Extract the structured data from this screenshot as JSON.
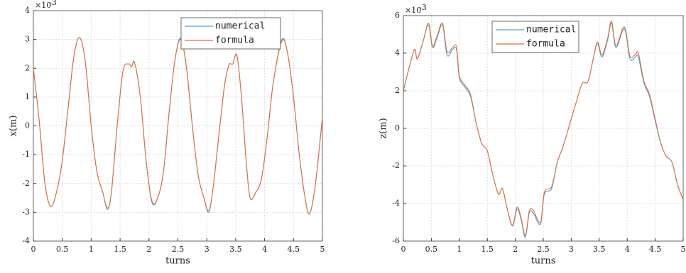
{
  "chart_data": [
    {
      "type": "line",
      "xlabel": "turns",
      "ylabel": "x(m)",
      "y_multiplier": "×10",
      "y_exponent": "-3",
      "xlim": [
        0,
        5
      ],
      "xticks": [
        0,
        0.5,
        1,
        1.5,
        2,
        2.5,
        3,
        3.5,
        4,
        4.5,
        5
      ],
      "ylim": [
        -4,
        4
      ],
      "yticks": [
        -4,
        -3,
        -2,
        -1,
        0,
        1,
        2,
        3,
        4
      ],
      "grid": true,
      "legend": "top",
      "x": [
        0,
        0.1,
        0.2,
        0.3,
        0.4,
        0.5,
        0.6,
        0.7,
        0.8,
        0.9,
        1.0,
        1.1,
        1.2,
        1.28,
        1.35,
        1.45,
        1.55,
        1.65,
        1.7,
        1.75,
        1.85,
        1.95,
        2.05,
        2.15,
        2.25,
        2.35,
        2.45,
        2.55,
        2.65,
        2.75,
        2.85,
        2.95,
        3.03,
        3.1,
        3.2,
        3.3,
        3.38,
        3.45,
        3.52,
        3.6,
        3.68,
        3.75,
        3.85,
        3.95,
        4.05,
        4.15,
        4.3,
        4.4,
        4.5,
        4.6,
        4.7,
        4.78,
        4.88,
        5.0
      ],
      "series": [
        {
          "name": "numerical",
          "color": "#4a9fd4",
          "values": [
            2.0,
            0.2,
            -2.0,
            -2.8,
            -2.3,
            -1.2,
            0.6,
            2.4,
            3.07,
            2.2,
            0.0,
            -1.6,
            -2.3,
            -2.9,
            -2.3,
            0.0,
            1.9,
            2.15,
            2.05,
            2.2,
            1.0,
            -1.2,
            -2.65,
            -2.5,
            -1.6,
            0.5,
            2.3,
            3.05,
            2.0,
            0.0,
            -1.7,
            -2.5,
            -3.0,
            -2.3,
            -0.5,
            1.3,
            2.1,
            2.15,
            2.45,
            1.0,
            -1.2,
            -2.5,
            -2.3,
            -1.8,
            -0.3,
            1.5,
            3.0,
            2.5,
            1.0,
            -1.0,
            -2.5,
            -3.05,
            -2.0,
            0.3
          ]
        },
        {
          "name": "formula",
          "color": "#e0703c",
          "values": [
            2.0,
            0.2,
            -2.0,
            -2.8,
            -2.3,
            -1.2,
            0.6,
            2.4,
            3.07,
            2.2,
            0.0,
            -1.6,
            -2.3,
            -2.85,
            -2.3,
            0.0,
            1.9,
            2.15,
            2.05,
            2.2,
            1.0,
            -1.2,
            -2.6,
            -2.5,
            -1.6,
            0.5,
            2.3,
            3.0,
            2.0,
            0.0,
            -1.7,
            -2.5,
            -2.95,
            -2.3,
            -0.5,
            1.3,
            2.1,
            2.15,
            2.45,
            1.0,
            -1.2,
            -2.5,
            -2.3,
            -1.8,
            -0.3,
            1.5,
            2.95,
            2.5,
            1.0,
            -1.0,
            -2.5,
            -3.05,
            -2.0,
            0.3
          ]
        }
      ]
    },
    {
      "type": "line",
      "xlabel": "turns",
      "ylabel": "z(m)",
      "y_multiplier": "×10",
      "y_exponent": "-3",
      "xlim": [
        0,
        5
      ],
      "xticks": [
        0,
        0.5,
        1,
        1.5,
        2,
        2.5,
        3,
        3.5,
        4,
        4.5,
        5
      ],
      "ylim": [
        -6,
        6
      ],
      "yticks": [
        -6,
        -4,
        -2,
        0,
        2,
        4,
        6
      ],
      "grid": true,
      "legend": "top",
      "x": [
        0,
        0.1,
        0.2,
        0.25,
        0.35,
        0.45,
        0.52,
        0.6,
        0.7,
        0.78,
        0.88,
        0.95,
        1.0,
        1.1,
        1.2,
        1.3,
        1.4,
        1.5,
        1.6,
        1.7,
        1.77,
        1.85,
        1.95,
        2.03,
        2.1,
        2.18,
        2.25,
        2.32,
        2.45,
        2.52,
        2.65,
        2.75,
        2.85,
        3.0,
        3.1,
        3.2,
        3.3,
        3.4,
        3.47,
        3.55,
        3.65,
        3.72,
        3.8,
        3.95,
        4.05,
        4.15,
        4.2,
        4.3,
        4.4,
        4.5,
        4.6,
        4.7,
        4.8,
        4.9,
        5.0
      ],
      "series": [
        {
          "name": "numerical",
          "color": "#4a9fd4",
          "values": [
            2.0,
            3.2,
            4.2,
            3.7,
            4.6,
            5.5,
            4.3,
            4.8,
            5.5,
            3.9,
            4.2,
            4.2,
            2.7,
            2.2,
            1.7,
            0.3,
            -0.8,
            -1.2,
            -2.5,
            -3.5,
            -3.2,
            -4.2,
            -5.2,
            -4.3,
            -4.8,
            -5.8,
            -4.5,
            -4.5,
            -5.1,
            -3.5,
            -3.2,
            -1.8,
            -1.0,
            0.5,
            1.5,
            2.4,
            2.5,
            3.8,
            4.5,
            3.8,
            4.7,
            5.6,
            4.3,
            5.3,
            3.7,
            3.8,
            3.8,
            2.4,
            1.7,
            0.4,
            -0.8,
            -1.5,
            -1.8,
            -3.0,
            -3.8
          ]
        },
        {
          "name": "formula",
          "color": "#e0703c",
          "values": [
            2.0,
            3.2,
            4.2,
            3.7,
            4.6,
            5.6,
            4.4,
            4.9,
            5.6,
            4.1,
            4.3,
            4.35,
            2.8,
            2.3,
            1.8,
            0.3,
            -0.8,
            -1.2,
            -2.5,
            -3.5,
            -3.2,
            -4.2,
            -5.15,
            -4.2,
            -4.7,
            -5.7,
            -4.4,
            -4.35,
            -5.0,
            -3.4,
            -3.1,
            -1.8,
            -1.0,
            0.5,
            1.5,
            2.4,
            2.5,
            3.8,
            4.6,
            3.9,
            4.8,
            5.7,
            4.4,
            5.4,
            3.85,
            3.95,
            4.0,
            2.5,
            1.8,
            0.5,
            -0.8,
            -1.5,
            -1.8,
            -3.0,
            -3.8
          ]
        }
      ]
    }
  ]
}
